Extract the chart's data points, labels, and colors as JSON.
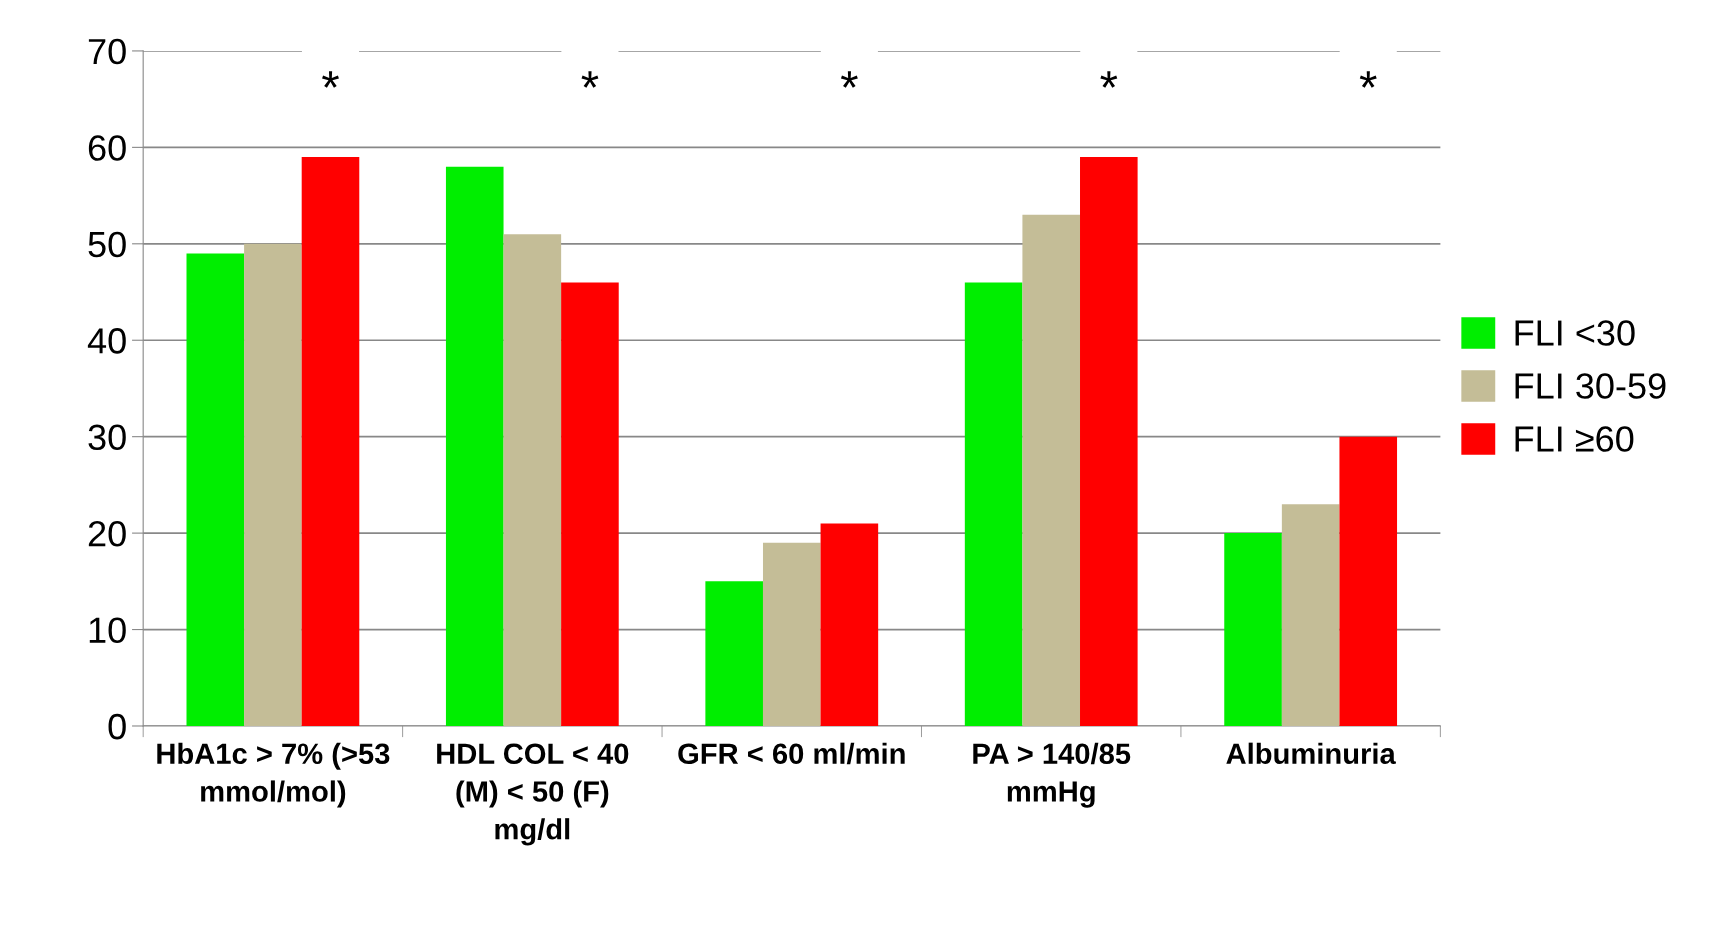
{
  "chart_data": {
    "type": "bar",
    "categories": [
      "HbA1c > 7% (>53\nmmol/mol)",
      "HDL COL < 40\n(M) < 50 (F)\nmg/dl",
      "GFR < 60 ml/min",
      "PA > 140/85\nmmHg",
      "Albuminuria"
    ],
    "series": [
      {
        "name": "FLI <30",
        "color": "#00ee00",
        "values": [
          49,
          58,
          15,
          46,
          20
        ]
      },
      {
        "name": "FLI 30-59",
        "color": "#c4bd97",
        "values": [
          50,
          51,
          19,
          53,
          23
        ]
      },
      {
        "name": "FLI ≥60",
        "color": "#ff0000",
        "values": [
          59,
          46,
          21,
          59,
          30
        ]
      }
    ],
    "ylim": [
      0,
      70
    ],
    "yticks": [
      0,
      10,
      20,
      30,
      40,
      50,
      60,
      70
    ],
    "grid": "y",
    "legend": "right",
    "annotations": [
      "*",
      "*",
      "*",
      "*",
      "*"
    ]
  }
}
